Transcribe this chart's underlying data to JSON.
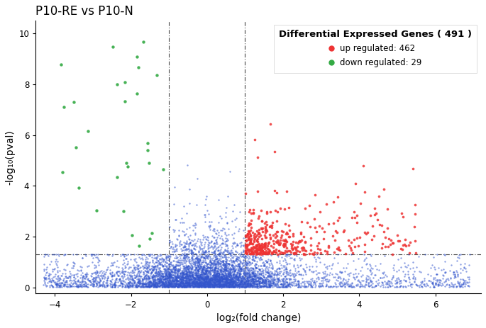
{
  "title": "P10-RE vs P10-N",
  "xlabel": "log₂(fold change)",
  "ylabel": "-log₁₀(pval)",
  "legend_title": "Differential Expressed Genes ( 491 )",
  "legend_up": "up regulated: 462",
  "legend_down": "down regulated: 29",
  "n_up": 462,
  "n_down": 29,
  "n_blue": 5000,
  "fc_threshold": 1.0,
  "pval_threshold": 1.3,
  "xlim": [
    -4.5,
    7.2
  ],
  "ylim": [
    -0.25,
    10.5
  ],
  "xticks": [
    -4,
    -2,
    0,
    2,
    4,
    6
  ],
  "yticks": [
    0,
    2,
    4,
    6,
    8,
    10
  ],
  "color_up": "#EE3333",
  "color_down": "#33AA44",
  "color_nonsig": "#3355CC",
  "vline_positions": [
    -1,
    1
  ],
  "hline_position": 1.3,
  "seed": 42,
  "background_color": "#ffffff"
}
